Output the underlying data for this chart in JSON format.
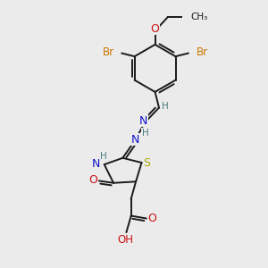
{
  "bg_color": "#ebebeb",
  "bond_color": "#1a1a1a",
  "bond_width": 1.4,
  "colors": {
    "C": "#1a1a1a",
    "H": "#4a8080",
    "N": "#1010cc",
    "O": "#cc1010",
    "S": "#aaaa00",
    "Br": "#cc7700"
  },
  "font_size": 8.0
}
